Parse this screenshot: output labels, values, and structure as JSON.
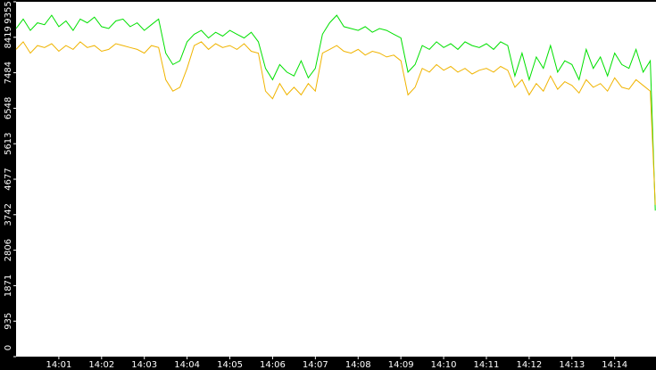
{
  "chart_data": {
    "type": "line",
    "x": [
      0,
      10,
      20,
      30,
      40,
      50,
      60,
      70,
      80,
      90,
      100,
      110,
      120,
      130,
      140,
      150,
      160,
      170,
      180,
      190,
      200,
      210,
      220,
      230,
      240,
      250,
      260,
      270,
      280,
      290,
      300,
      310,
      320,
      330,
      340,
      350,
      360,
      370,
      380,
      390,
      400,
      410,
      420,
      430,
      440,
      450,
      460,
      470,
      480,
      490,
      500,
      510,
      520,
      530,
      540,
      550,
      560,
      570,
      580,
      590,
      600,
      610,
      620,
      630,
      640,
      650,
      660,
      670,
      680,
      690,
      700,
      710,
      720,
      730,
      740,
      750,
      760,
      770,
      780,
      790,
      800,
      810,
      820,
      830,
      840,
      850,
      860,
      870,
      880,
      890,
      897
    ],
    "series": [
      {
        "color": "#00e000",
        "values": [
          8650,
          8900,
          8600,
          8800,
          8750,
          9000,
          8700,
          8850,
          8600,
          8900,
          8800,
          8950,
          8700,
          8650,
          8850,
          8900,
          8700,
          8800,
          8600,
          8750,
          8900,
          8000,
          7700,
          7800,
          8300,
          8500,
          8600,
          8400,
          8550,
          8450,
          8600,
          8500,
          8400,
          8550,
          8300,
          7600,
          7300,
          7700,
          7500,
          7400,
          7800,
          7350,
          7600,
          8500,
          8800,
          9000,
          8700,
          8650,
          8600,
          8700,
          8550,
          8650,
          8600,
          8500,
          8400,
          7500,
          7700,
          8200,
          8100,
          8300,
          8150,
          8250,
          8100,
          8300,
          8200,
          8150,
          8250,
          8100,
          8300,
          8200,
          7400,
          8000,
          7300,
          7900,
          7600,
          8200,
          7500,
          7800,
          7700,
          7300,
          8100,
          7600,
          7900,
          7400,
          8000,
          7700,
          7600,
          8100,
          7500,
          7800,
          3850
        ]
      },
      {
        "color": "#f0b400",
        "values": [
          8100,
          8300,
          8000,
          8200,
          8150,
          8250,
          8050,
          8200,
          8100,
          8300,
          8150,
          8200,
          8050,
          8100,
          8250,
          8200,
          8150,
          8100,
          8000,
          8200,
          8150,
          7300,
          7000,
          7100,
          7600,
          8200,
          8300,
          8100,
          8250,
          8150,
          8200,
          8100,
          8250,
          8050,
          8000,
          7000,
          6800,
          7200,
          6900,
          7100,
          6900,
          7200,
          7000,
          8000,
          8100,
          8200,
          8050,
          8000,
          8100,
          7950,
          8050,
          8000,
          7900,
          7950,
          7800,
          6900,
          7100,
          7600,
          7500,
          7700,
          7550,
          7650,
          7500,
          7600,
          7450,
          7550,
          7600,
          7500,
          7650,
          7550,
          7100,
          7300,
          6900,
          7200,
          7000,
          7400,
          7050,
          7250,
          7150,
          6950,
          7300,
          7100,
          7200,
          7000,
          7350,
          7100,
          7050,
          7300,
          7150,
          7000,
          4000
        ]
      }
    ],
    "xlim": [
      0,
      898
    ],
    "xticks": [
      {
        "value": 60,
        "label": "14:01"
      },
      {
        "value": 120,
        "label": "14:02"
      },
      {
        "value": 180,
        "label": "14:03"
      },
      {
        "value": 240,
        "label": "14:04"
      },
      {
        "value": 300,
        "label": "14:05"
      },
      {
        "value": 360,
        "label": "14:06"
      },
      {
        "value": 420,
        "label": "14:07"
      },
      {
        "value": 480,
        "label": "14:08"
      },
      {
        "value": 540,
        "label": "14:09"
      },
      {
        "value": 600,
        "label": "14:10"
      },
      {
        "value": 660,
        "label": "14:11"
      },
      {
        "value": 720,
        "label": "14:12"
      },
      {
        "value": 780,
        "label": "14:13"
      },
      {
        "value": 840,
        "label": "14:14"
      }
    ],
    "ylim": [
      0,
      9355
    ],
    "yticks": [
      0,
      935,
      1871,
      2806,
      3742,
      4677,
      5613,
      6548,
      7484,
      8419,
      9355
    ]
  }
}
